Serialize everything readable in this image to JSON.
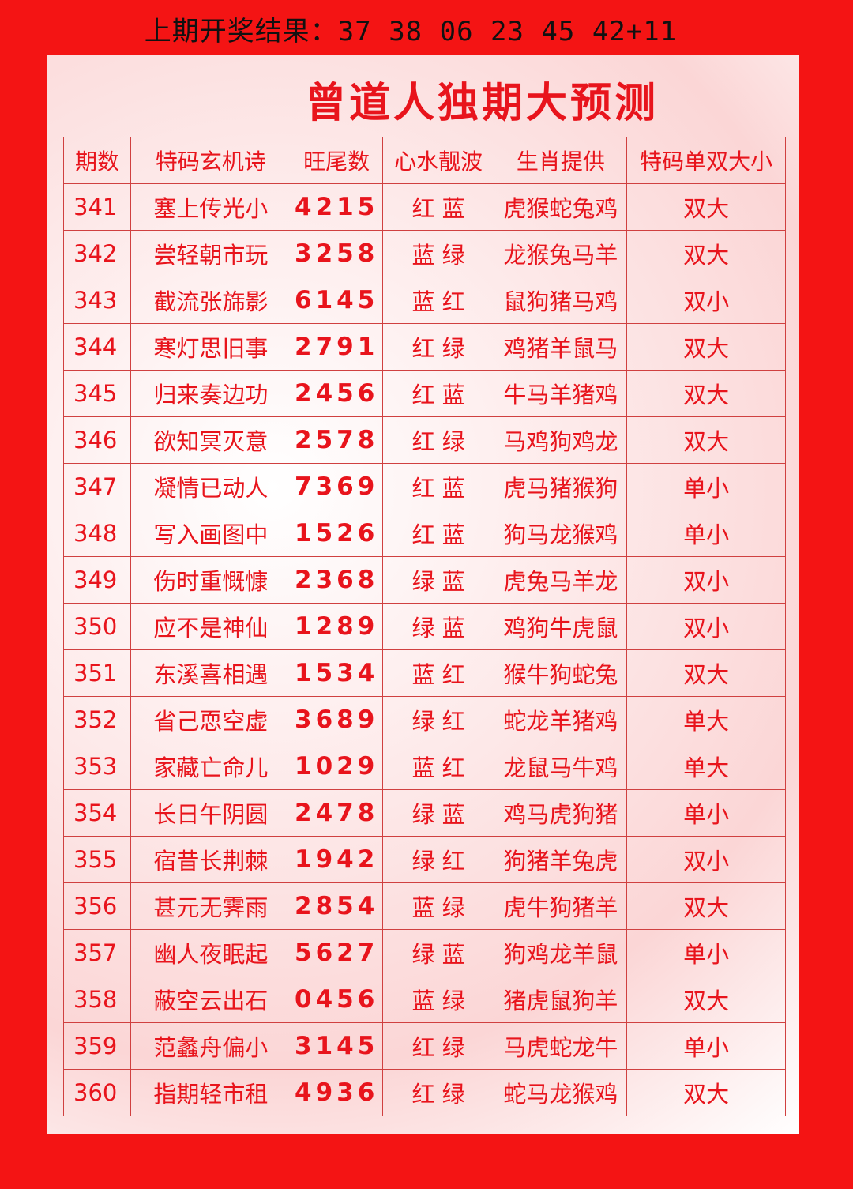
{
  "last_result": "上期开奖结果：37 38 06 23 45 42+11",
  "title": "曾道人独期大预测",
  "headers": [
    "期数",
    "特码玄机诗",
    "旺尾数",
    "心水靓波",
    "生肖提供",
    "特码单双大小"
  ],
  "rows": [
    [
      "341",
      "塞上传光小",
      "4215",
      "红 蓝",
      "虎猴蛇兔鸡",
      "双大"
    ],
    [
      "342",
      "尝轻朝市玩",
      "3258",
      "蓝 绿",
      "龙猴兔马羊",
      "双大"
    ],
    [
      "343",
      "截流张旆影",
      "6145",
      "蓝 红",
      "鼠狗猪马鸡",
      "双小"
    ],
    [
      "344",
      "寒灯思旧事",
      "2791",
      "红 绿",
      "鸡猪羊鼠马",
      "双大"
    ],
    [
      "345",
      "归来奏边功",
      "2456",
      "红 蓝",
      "牛马羊猪鸡",
      "双大"
    ],
    [
      "346",
      "欲知冥灭意",
      "2578",
      "红 绿",
      "马鸡狗鸡龙",
      "双大"
    ],
    [
      "347",
      "凝情已动人",
      "7369",
      "红 蓝",
      "虎马猪猴狗",
      "单小"
    ],
    [
      "348",
      "写入画图中",
      "1526",
      "红 蓝",
      "狗马龙猴鸡",
      "单小"
    ],
    [
      "349",
      "伤时重慨慷",
      "2368",
      "绿 蓝",
      "虎兔马羊龙",
      "双小"
    ],
    [
      "350",
      "应不是神仙",
      "1289",
      "绿 蓝",
      "鸡狗牛虎鼠",
      "双小"
    ],
    [
      "351",
      "东溪喜相遇",
      "1534",
      "蓝 红",
      "猴牛狗蛇兔",
      "双大"
    ],
    [
      "352",
      "省己恧空虚",
      "3689",
      "绿 红",
      "蛇龙羊猪鸡",
      "单大"
    ],
    [
      "353",
      "家藏亡命儿",
      "1029",
      "蓝 红",
      "龙鼠马牛鸡",
      "单大"
    ],
    [
      "354",
      "长日午阴圆",
      "2478",
      "绿 蓝",
      "鸡马虎狗猪",
      "单小"
    ],
    [
      "355",
      "宿昔长荆棘",
      "1942",
      "绿 红",
      "狗猪羊兔虎",
      "双小"
    ],
    [
      "356",
      "甚元无霁雨",
      "2854",
      "蓝 绿",
      "虎牛狗猪羊",
      "双大"
    ],
    [
      "357",
      "幽人夜眠起",
      "5627",
      "绿 蓝",
      "狗鸡龙羊鼠",
      "单小"
    ],
    [
      "358",
      "蔽空云出石",
      "0456",
      "蓝 绿",
      "猪虎鼠狗羊",
      "双大"
    ],
    [
      "359",
      "范蠡舟偏小",
      "3145",
      "红 绿",
      "马虎蛇龙牛",
      "单小"
    ],
    [
      "360",
      "指期轻市租",
      "4936",
      "红 绿",
      "蛇马龙猴鸡",
      "双大"
    ]
  ],
  "colors": {
    "background": "#f41414",
    "text": "#e8141c"
  }
}
